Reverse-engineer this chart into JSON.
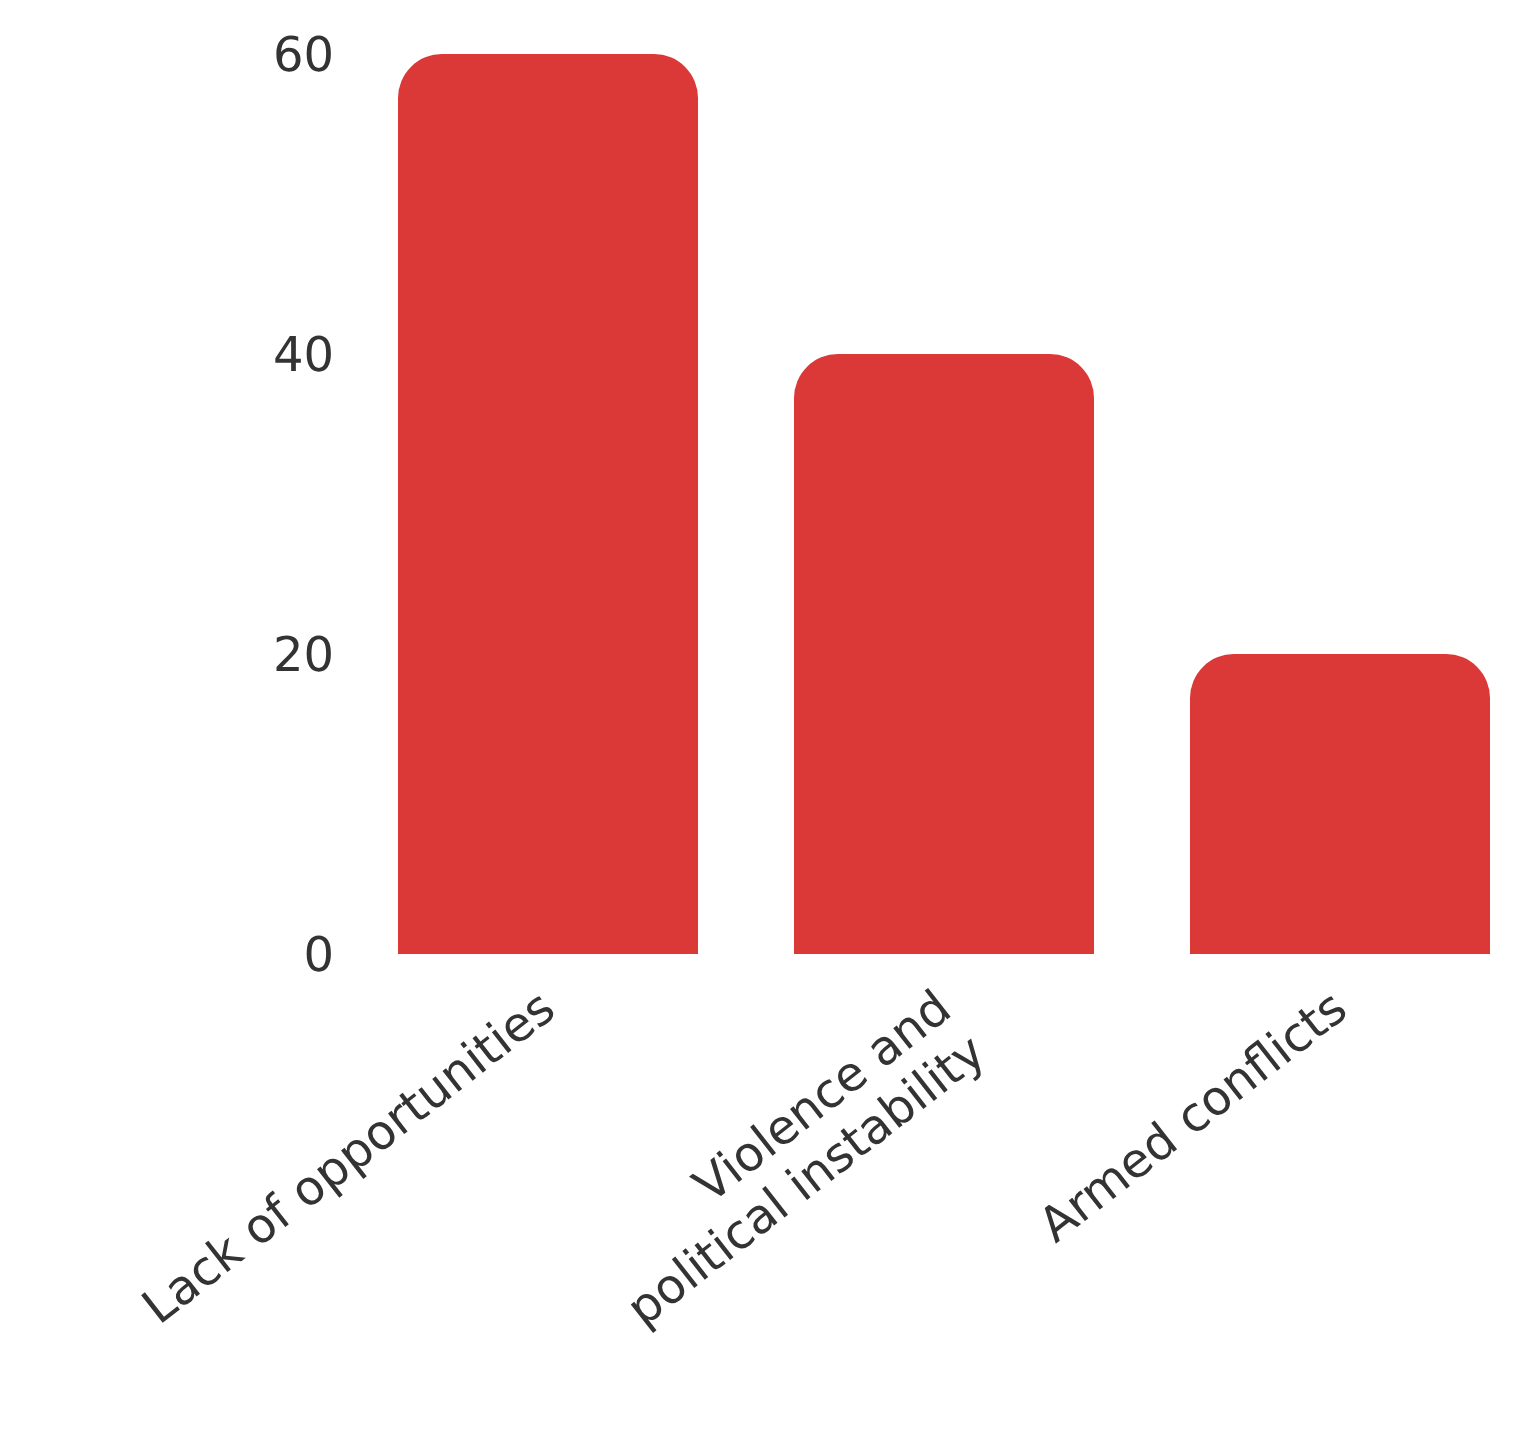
{
  "chart_data": {
    "type": "bar",
    "categories": [
      "Lack of opportunities",
      "Violence and political instability",
      "Armed conflicts"
    ],
    "values": [
      60,
      40,
      20
    ],
    "color": "#db3838",
    "ylim": [
      0,
      60
    ],
    "yticks": [
      0,
      20,
      40,
      60
    ],
    "grid": false,
    "legend": false
  }
}
